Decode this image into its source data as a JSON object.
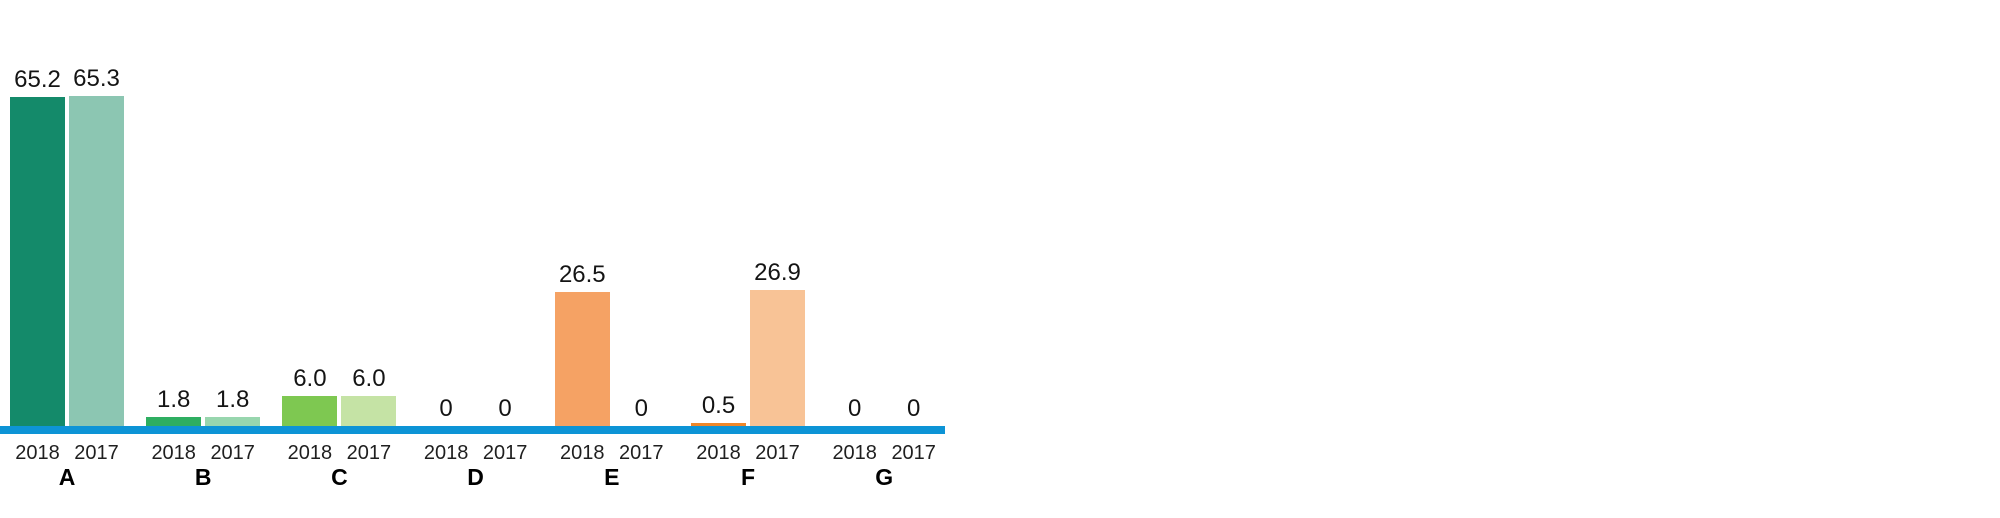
{
  "chart_data": {
    "type": "bar",
    "title": "",
    "xlabel": "",
    "ylabel": "",
    "categories": [
      "A",
      "B",
      "C",
      "D",
      "E",
      "F",
      "G"
    ],
    "series_names": [
      "2018",
      "2017"
    ],
    "legend_position": "none",
    "grid": false,
    "ylim": [
      0,
      70
    ],
    "axis_color": "#0d94d6",
    "label_color": "#141414",
    "groups": [
      {
        "label": "A",
        "bars": [
          {
            "year": "2018",
            "value": 65.2,
            "value_label": "65.2",
            "color": "#148a6a"
          },
          {
            "year": "2017",
            "value": 65.3,
            "value_label": "65.3",
            "color": "#8cc6b2"
          }
        ]
      },
      {
        "label": "B",
        "bars": [
          {
            "year": "2018",
            "value": 1.8,
            "value_label": "1.8",
            "color": "#2eae61"
          },
          {
            "year": "2017",
            "value": 1.8,
            "value_label": "1.8",
            "color": "#98d6ae"
          }
        ]
      },
      {
        "label": "C",
        "bars": [
          {
            "year": "2018",
            "value": 6.0,
            "value_label": "6.0",
            "color": "#7ec851"
          },
          {
            "year": "2017",
            "value": 6.0,
            "value_label": "6.0",
            "color": "#c5e3a5"
          }
        ]
      },
      {
        "label": "D",
        "bars": [
          {
            "year": "2018",
            "value": 0,
            "value_label": "0",
            "color": null
          },
          {
            "year": "2017",
            "value": 0,
            "value_label": "0",
            "color": null
          }
        ]
      },
      {
        "label": "E",
        "bars": [
          {
            "year": "2018",
            "value": 26.5,
            "value_label": "26.5",
            "color": "#f5a264"
          },
          {
            "year": "2017",
            "value": 0,
            "value_label": "0",
            "color": null
          }
        ]
      },
      {
        "label": "F",
        "bars": [
          {
            "year": "2018",
            "value": 0.5,
            "value_label": "0.5",
            "color": "#f08728"
          },
          {
            "year": "2017",
            "value": 26.9,
            "value_label": "26.9",
            "color": "#f8c396"
          }
        ]
      },
      {
        "label": "G",
        "bars": [
          {
            "year": "2018",
            "value": 0,
            "value_label": "0",
            "color": null
          },
          {
            "year": "2017",
            "value": 0,
            "value_label": "0",
            "color": null
          }
        ]
      }
    ]
  }
}
